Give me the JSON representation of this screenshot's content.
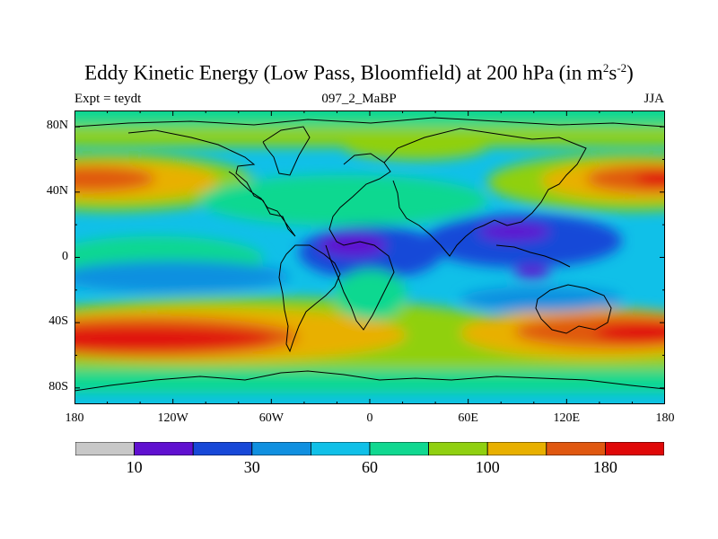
{
  "title": {
    "main_prefix": "Eddy Kinetic Energy (Low Pass, Bloomfield) at 200 hPa (in m",
    "sup1": "2",
    "mid": "s",
    "sup2": "-2",
    "suffix": ")"
  },
  "subtitles": {
    "left": "Expt = teydt",
    "center": "097_2_MaBP",
    "right": "JJA"
  },
  "chart_data": {
    "type": "heatmap",
    "title": "Eddy Kinetic Energy (Low Pass, Bloomfield) at 200 hPa (in m2s-2)",
    "x_ticks": [
      "180",
      "120W",
      "60W",
      "0",
      "60E",
      "120E",
      "180"
    ],
    "x_tick_values": [
      -180,
      -120,
      -60,
      0,
      60,
      120,
      180
    ],
    "y_ticks": [
      "80N",
      "40N",
      "0",
      "40S",
      "80S"
    ],
    "y_tick_values": [
      80,
      40,
      0,
      -40,
      -80
    ],
    "xlim": [
      -180,
      180
    ],
    "ylim": [
      -90,
      90
    ],
    "colorbar": {
      "colors": [
        "#c8c8c8",
        "#6010d0",
        "#1848d8",
        "#1090e0",
        "#10c0e8",
        "#10d890",
        "#90d010",
        "#e8b000",
        "#e05810",
        "#e00808"
      ],
      "labels": [
        "10",
        "30",
        "60",
        "100",
        "180"
      ],
      "label_boundaries": [
        1,
        3,
        5,
        7,
        9
      ]
    },
    "features": [
      {
        "name": "NH subtropical jet Pacific",
        "lon": 180,
        "lat": 45,
        "level": 8
      },
      {
        "name": "NH subtropical jet Asia",
        "lon": 165,
        "lat": 45,
        "level": 9
      },
      {
        "name": "SH jet Pacific",
        "lon": -140,
        "lat": -45,
        "level": 9
      },
      {
        "name": "SH jet Indian Ocean",
        "lon": 140,
        "lat": -45,
        "level": 9
      },
      {
        "name": "Tropical Atlantic minimum",
        "lon": -5,
        "lat": 5,
        "level": 1
      },
      {
        "name": "Tropical Asia minimum",
        "lon": 90,
        "lat": 12,
        "level": 1
      },
      {
        "name": "Indian Ocean minimum",
        "lon": 100,
        "lat": -8,
        "level": 1
      }
    ]
  }
}
